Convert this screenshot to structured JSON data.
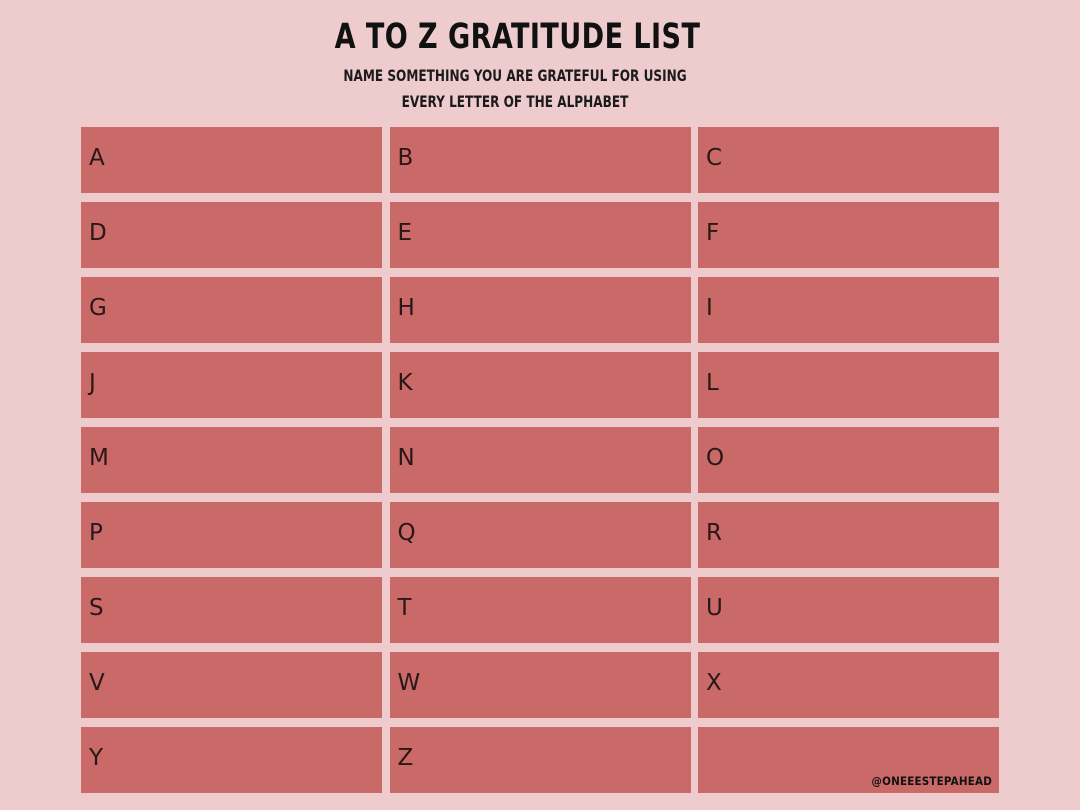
{
  "header": {
    "title": "A TO Z GRATITUDE LIST",
    "subtitle_line1": "NAME SOMETHING YOU ARE GRATEFUL FOR USING",
    "subtitle_line2": "EVERY LETTER OF THE ALPHABET"
  },
  "grid": {
    "cells": [
      "A",
      "B",
      "C",
      "D",
      "E",
      "F",
      "G",
      "H",
      "I",
      "J",
      "K",
      "L",
      "M",
      "N",
      "O",
      "P",
      "Q",
      "R",
      "S",
      "T",
      "U",
      "V",
      "W",
      "X",
      "Y",
      "Z",
      ""
    ],
    "credit": "@ONEEESTEPAHEAD"
  },
  "colors": {
    "background": "#eecccd",
    "cell": "#c96968"
  }
}
